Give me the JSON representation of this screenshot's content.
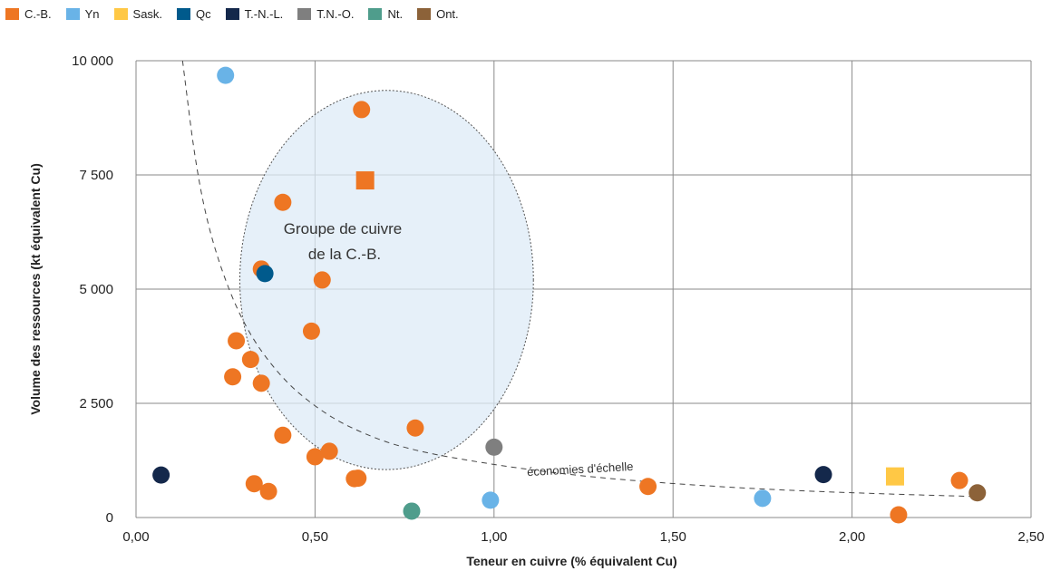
{
  "chart_data": {
    "type": "scatter",
    "xlabel": "Teneur en cuivre (% équivalent Cu)",
    "ylabel": "Volume des ressources (kt équivalent Cu)",
    "xlim": [
      0,
      2.5
    ],
    "ylim": [
      0,
      10000
    ],
    "x_ticks": [
      "0,00",
      "0,50",
      "1,00",
      "1,50",
      "2,00",
      "2,50"
    ],
    "x_tick_values": [
      0,
      0.5,
      1.0,
      1.5,
      2.0,
      2.5
    ],
    "y_ticks": [
      "0",
      "2 500",
      "5 000",
      "7 500",
      "10 000"
    ],
    "y_tick_values": [
      0,
      2500,
      5000,
      7500,
      10000
    ],
    "grid": true,
    "legend_position": "top-left",
    "series": [
      {
        "name": "C.-B.",
        "color": "#EE7623",
        "marker": "circle",
        "points": [
          [
            0.63,
            8930
          ],
          [
            0.41,
            6900
          ],
          [
            0.35,
            5440
          ],
          [
            0.52,
            5200
          ],
          [
            0.49,
            4080
          ],
          [
            0.28,
            3870
          ],
          [
            0.32,
            3460
          ],
          [
            0.27,
            3080
          ],
          [
            0.35,
            2940
          ],
          [
            0.78,
            1960
          ],
          [
            0.41,
            1800
          ],
          [
            0.54,
            1450
          ],
          [
            0.5,
            1330
          ],
          [
            0.61,
            850
          ],
          [
            0.62,
            860
          ],
          [
            0.33,
            740
          ],
          [
            0.37,
            570
          ],
          [
            1.43,
            680
          ],
          [
            2.3,
            810
          ],
          [
            2.13,
            60
          ]
        ]
      },
      {
        "name": "C.-B.",
        "color": "#EE7623",
        "marker": "square",
        "points": [
          [
            0.64,
            7380
          ]
        ]
      },
      {
        "name": "Yn",
        "color": "#69B3E7",
        "marker": "circle",
        "points": [
          [
            0.25,
            9680
          ],
          [
            0.99,
            380
          ],
          [
            1.75,
            420
          ]
        ]
      },
      {
        "name": "Sask.",
        "color": "#FFC845",
        "marker": "square",
        "points": [
          [
            2.12,
            900
          ]
        ]
      },
      {
        "name": "Qc",
        "color": "#005A8C",
        "marker": "circle",
        "points": [
          [
            0.36,
            5340
          ]
        ]
      },
      {
        "name": "T.-N.-L.",
        "color": "#14284B",
        "marker": "circle",
        "points": [
          [
            0.07,
            930
          ],
          [
            1.92,
            940
          ]
        ]
      },
      {
        "name": "T.N.-O.",
        "color": "#7F7F7F",
        "marker": "circle",
        "points": [
          [
            1.0,
            1540
          ]
        ]
      },
      {
        "name": "Nt.",
        "color": "#4F9D8C",
        "marker": "circle",
        "points": [
          [
            0.77,
            140
          ]
        ]
      },
      {
        "name": "Ont.",
        "color": "#8C6239",
        "marker": "circle",
        "points": [
          [
            2.35,
            540
          ]
        ]
      }
    ],
    "trend_curve": {
      "label": "économies d'échelle",
      "points": [
        [
          0.13,
          10000
        ],
        [
          0.17,
          7500
        ],
        [
          0.22,
          5800
        ],
        [
          0.3,
          4200
        ],
        [
          0.4,
          3100
        ],
        [
          0.5,
          2420
        ],
        [
          0.6,
          1950
        ],
        [
          0.75,
          1500
        ],
        [
          1.0,
          1150
        ],
        [
          1.25,
          900
        ],
        [
          1.5,
          740
        ],
        [
          1.75,
          620
        ],
        [
          2.0,
          540
        ],
        [
          2.25,
          480
        ],
        [
          2.35,
          460
        ]
      ]
    },
    "cluster": {
      "label_line1": "Groupe de cuivre",
      "label_line2": "de la C.-B.",
      "center": [
        0.7,
        5200
      ],
      "radius_x": 0.41,
      "radius_y": 4150
    }
  }
}
